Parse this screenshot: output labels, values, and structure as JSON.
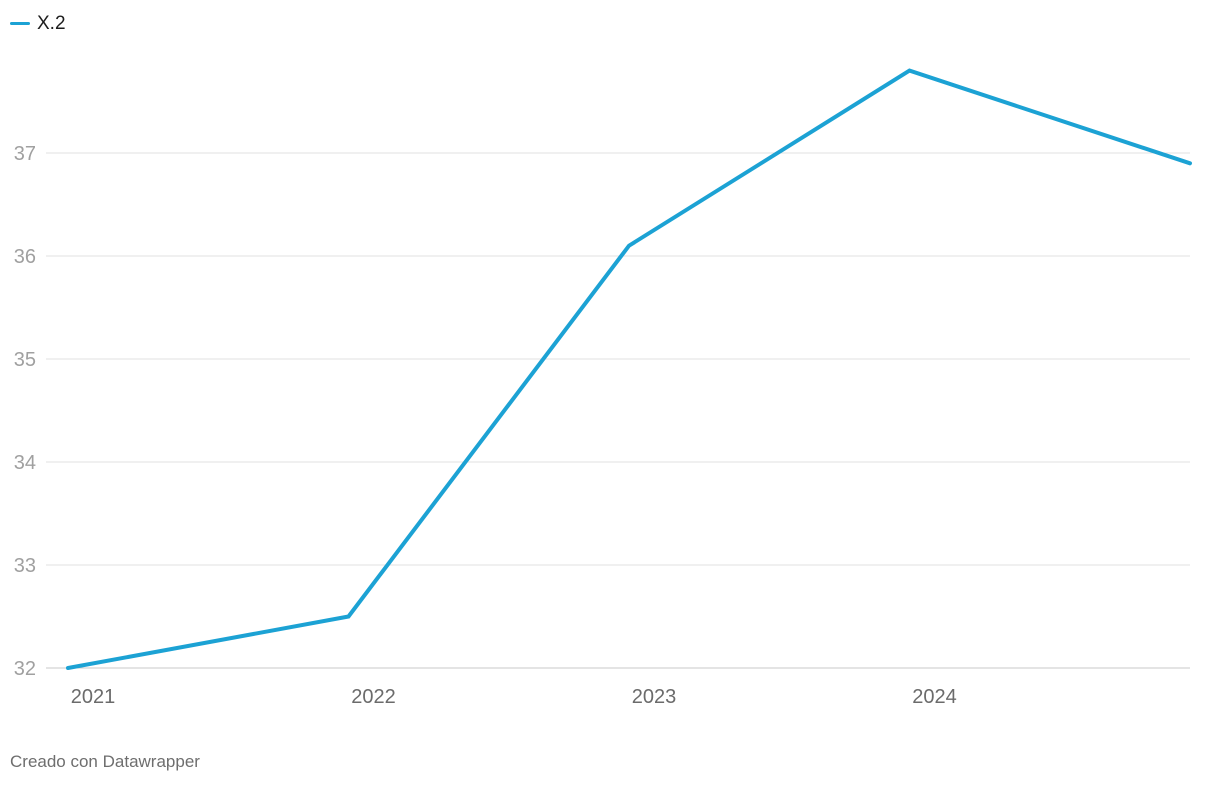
{
  "legend": {
    "label": "X.2"
  },
  "footer": {
    "credit": "Creado con Datawrapper"
  },
  "colors": {
    "line": "#1ca2d4",
    "grid": "#e1e1e1",
    "baseline": "#c9c9c9",
    "y_tick_label": "#a0a0a0",
    "x_tick_label": "#6b6b6b"
  },
  "chart_data": {
    "type": "line",
    "title": "",
    "xlabel": "",
    "ylabel": "",
    "x": [
      2021,
      2022,
      2023,
      2024,
      2025
    ],
    "series": [
      {
        "name": "X.2",
        "values": [
          32.0,
          32.5,
          36.1,
          37.8,
          36.9
        ]
      }
    ],
    "x_tick_labels": [
      "2021",
      "2022",
      "2023",
      "2024"
    ],
    "y_ticks": [
      32,
      33,
      34,
      35,
      36,
      37
    ],
    "ylim": [
      32,
      37.85
    ],
    "grid": "horizontal",
    "legend_position": "top-left",
    "attribution": "Creado con Datawrapper"
  }
}
